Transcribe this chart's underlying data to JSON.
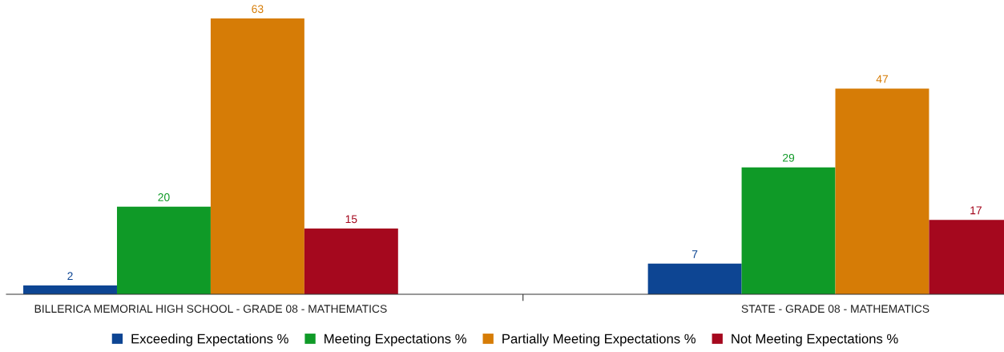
{
  "chart_data": {
    "type": "bar",
    "categories": [
      "BILLERICA MEMORIAL HIGH SCHOOL - GRADE 08 - MATHEMATICS",
      "STATE - GRADE 08 - MATHEMATICS"
    ],
    "series": [
      {
        "name": "Exceeding Expectations %",
        "color": "#0d4593",
        "values": [
          2,
          7
        ]
      },
      {
        "name": "Meeting Expectations %",
        "color": "#0f9a27",
        "values": [
          20,
          29
        ]
      },
      {
        "name": "Partially Meeting Expectations %",
        "color": "#d67c06",
        "values": [
          63,
          47
        ]
      },
      {
        "name": "Not Meeting Expectations %",
        "color": "#a5081e",
        "values": [
          15,
          17
        ]
      }
    ],
    "data_labels": true,
    "legend": "bottom",
    "grid": false
  }
}
